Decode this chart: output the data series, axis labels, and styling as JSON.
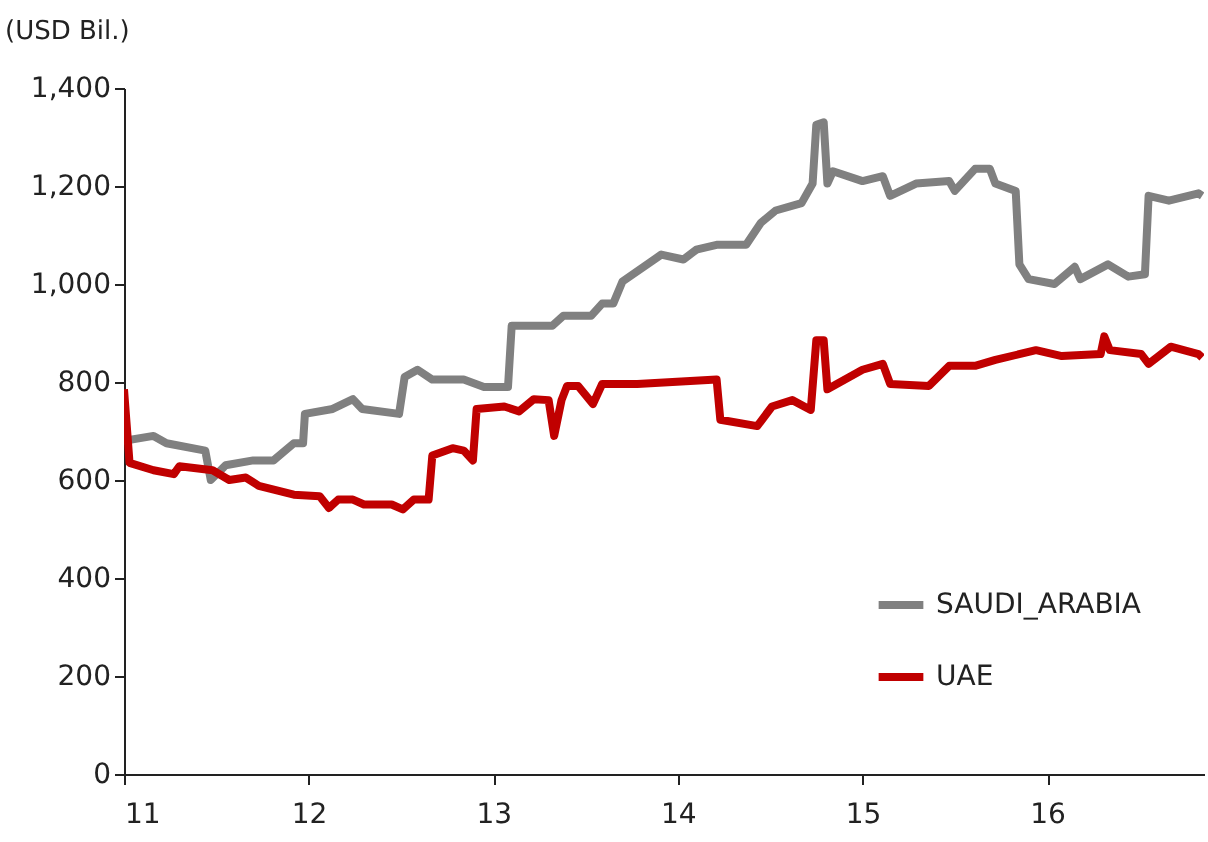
{
  "chart_data": {
    "type": "line",
    "ylabel": "(USD Bil.)",
    "xlim": [
      11,
      16.85
    ],
    "xticks": [
      11,
      12,
      13,
      14,
      15,
      16
    ],
    "ylim": [
      0,
      1400
    ],
    "yticks": [
      0,
      200,
      400,
      600,
      800,
      {
        "value": 1000,
        "label": "1,000"
      },
      {
        "value": 1200,
        "label": "1,200"
      },
      {
        "value": 1400,
        "label": "1,400"
      }
    ],
    "grid": false,
    "legend": "bottom right",
    "line_style": "solid",
    "marker": "none",
    "series": [
      {
        "name": "SAUDI_ARABIA",
        "color": "#808080",
        "x": [
          11.0,
          11.16,
          11.23,
          11.44,
          11.47,
          11.55,
          11.7,
          11.81,
          11.92,
          11.97,
          11.98,
          12.13,
          12.24,
          12.29,
          12.49,
          12.52,
          12.59,
          12.67,
          12.84,
          12.95,
          13.08,
          13.1,
          13.32,
          13.38,
          13.53,
          13.59,
          13.65,
          13.7,
          13.91,
          14.03,
          14.1,
          14.21,
          14.37,
          14.45,
          14.53,
          14.67,
          14.73,
          14.75,
          14.79,
          14.81,
          14.84,
          15.0,
          15.11,
          15.15,
          15.29,
          15.47,
          15.5,
          15.61,
          15.69,
          15.72,
          15.83,
          15.85,
          15.9,
          16.04,
          16.15,
          16.18,
          16.33,
          16.44,
          16.53,
          16.55,
          16.66,
          16.82,
          16.84
        ],
        "values": [
          680,
          690,
          675,
          660,
          600,
          630,
          640,
          640,
          675,
          675,
          735,
          745,
          765,
          745,
          735,
          810,
          825,
          805,
          805,
          790,
          790,
          915,
          915,
          935,
          935,
          960,
          960,
          1005,
          1060,
          1050,
          1070,
          1080,
          1080,
          1125,
          1150,
          1165,
          1205,
          1325,
          1330,
          1205,
          1230,
          1210,
          1220,
          1180,
          1205,
          1210,
          1190,
          1235,
          1235,
          1205,
          1190,
          1040,
          1010,
          1000,
          1035,
          1010,
          1040,
          1015,
          1020,
          1180,
          1170,
          1185,
          1180
        ]
      },
      {
        "name": "UAE",
        "color": "#c00000",
        "x": [
          11.0,
          11.03,
          11.16,
          11.27,
          11.3,
          11.48,
          11.57,
          11.66,
          11.73,
          11.92,
          12.06,
          12.11,
          12.16,
          12.24,
          12.3,
          12.45,
          12.51,
          12.57,
          12.65,
          12.67,
          12.78,
          12.84,
          12.89,
          12.91,
          13.06,
          13.14,
          13.22,
          13.3,
          13.33,
          13.37,
          13.4,
          13.46,
          13.54,
          13.59,
          13.78,
          14.21,
          14.23,
          14.43,
          14.51,
          14.62,
          14.72,
          14.75,
          14.79,
          14.81,
          15.0,
          15.11,
          15.15,
          15.36,
          15.47,
          15.61,
          15.72,
          15.94,
          16.08,
          16.29,
          16.31,
          16.34,
          16.51,
          16.55,
          16.67,
          16.82,
          16.84
        ],
        "values": [
          785,
          635,
          620,
          612,
          628,
          620,
          600,
          605,
          588,
          570,
          567,
          543,
          560,
          560,
          550,
          550,
          540,
          560,
          560,
          650,
          665,
          660,
          640,
          745,
          750,
          740,
          765,
          763,
          690,
          763,
          792,
          792,
          755,
          796,
          796,
          805,
          723,
          710,
          750,
          763,
          743,
          885,
          885,
          785,
          825,
          837,
          796,
          792,
          833,
          833,
          845,
          865,
          853,
          857,
          893,
          865,
          857,
          837,
          872,
          857,
          850
        ]
      }
    ]
  }
}
